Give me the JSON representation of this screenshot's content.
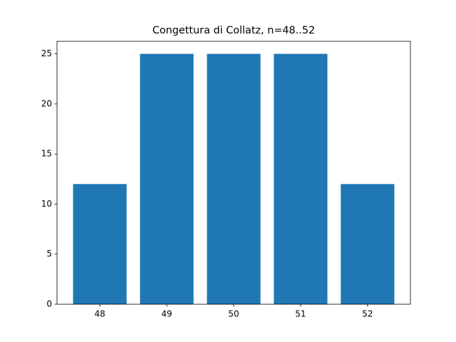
{
  "chart_data": {
    "type": "bar",
    "title": "Congettura di Collatz, n=48..52",
    "categories": [
      "48",
      "49",
      "50",
      "51",
      "52"
    ],
    "values": [
      12,
      25,
      25,
      25,
      12
    ],
    "color": "#1f77b4",
    "ylim": [
      0,
      26.25
    ],
    "yticks": [
      0,
      5,
      10,
      15,
      20,
      25
    ],
    "grid": false
  }
}
